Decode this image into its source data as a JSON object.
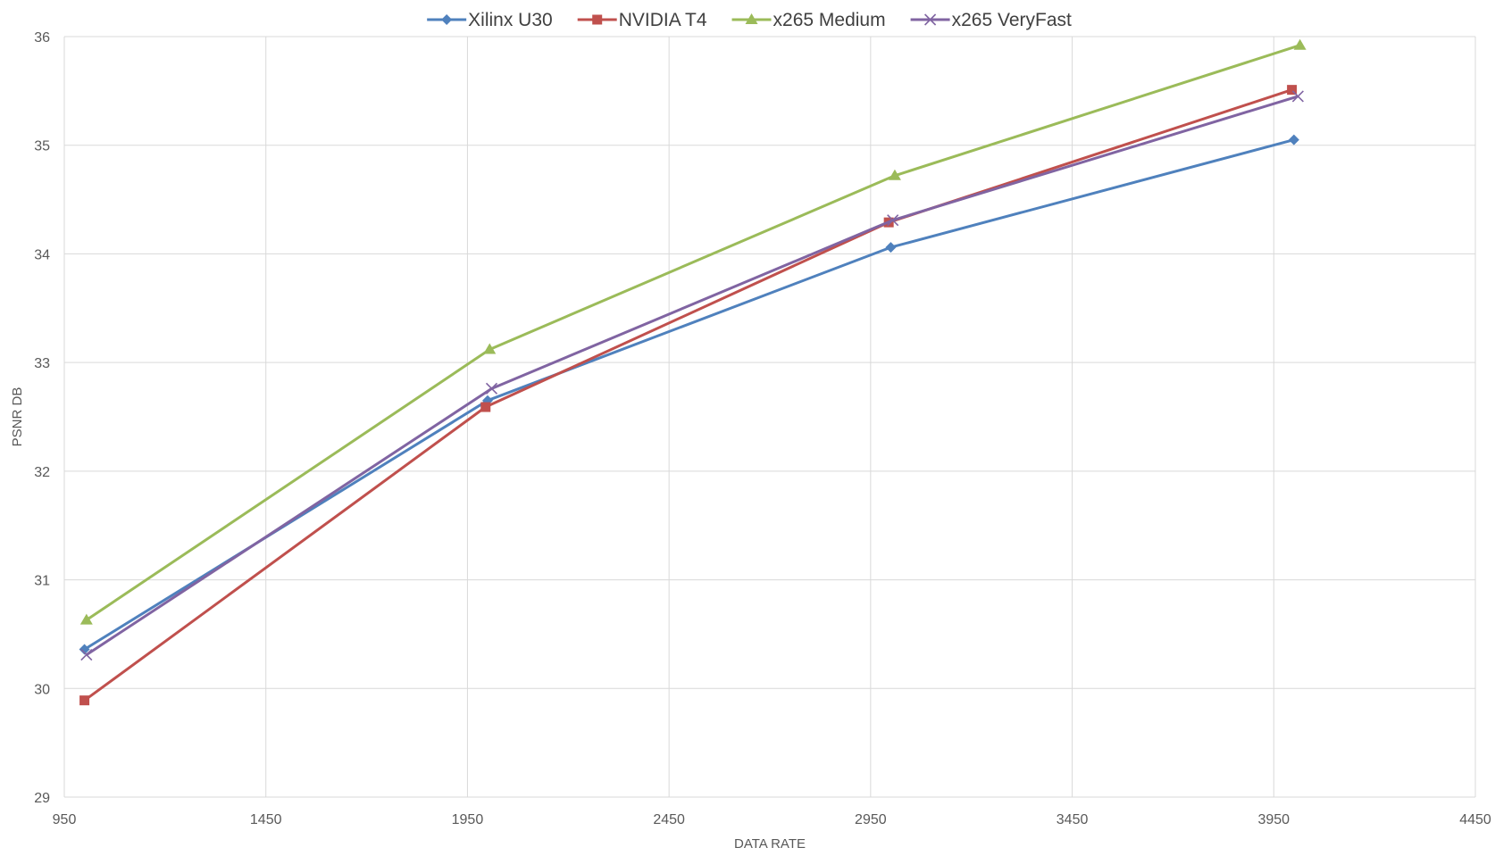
{
  "chart_data": {
    "type": "line",
    "title": "",
    "xlabel": "DATA RATE",
    "ylabel": "PSNR DB",
    "xlim": [
      950,
      4450
    ],
    "ylim": [
      29,
      36
    ],
    "x_ticks": [
      950,
      1450,
      1950,
      2450,
      2950,
      3450,
      3950,
      4450
    ],
    "y_ticks": [
      29,
      30,
      31,
      32,
      33,
      34,
      35,
      36
    ],
    "grid": true,
    "legend_position": "top",
    "series": [
      {
        "name": "Xilinx U30",
        "color": "#4f81bd",
        "marker": "diamond",
        "x": [
          1000,
          2000,
          3000,
          4000
        ],
        "y": [
          30.36,
          32.65,
          34.06,
          35.05
        ]
      },
      {
        "name": "NVIDIA T4",
        "color": "#c0504d",
        "marker": "square",
        "x": [
          1000,
          1995,
          2995,
          3995
        ],
        "y": [
          29.89,
          32.59,
          34.29,
          35.51
        ]
      },
      {
        "name": "x265 Medium",
        "color": "#9bbb59",
        "marker": "triangle",
        "x": [
          1005,
          2005,
          3010,
          4015
        ],
        "y": [
          30.63,
          33.12,
          34.72,
          35.92
        ]
      },
      {
        "name": "x265 VeryFast",
        "color": "#8064a2",
        "marker": "x",
        "x": [
          1005,
          2010,
          3005,
          4010
        ],
        "y": [
          30.31,
          32.76,
          34.31,
          35.45
        ]
      }
    ]
  }
}
